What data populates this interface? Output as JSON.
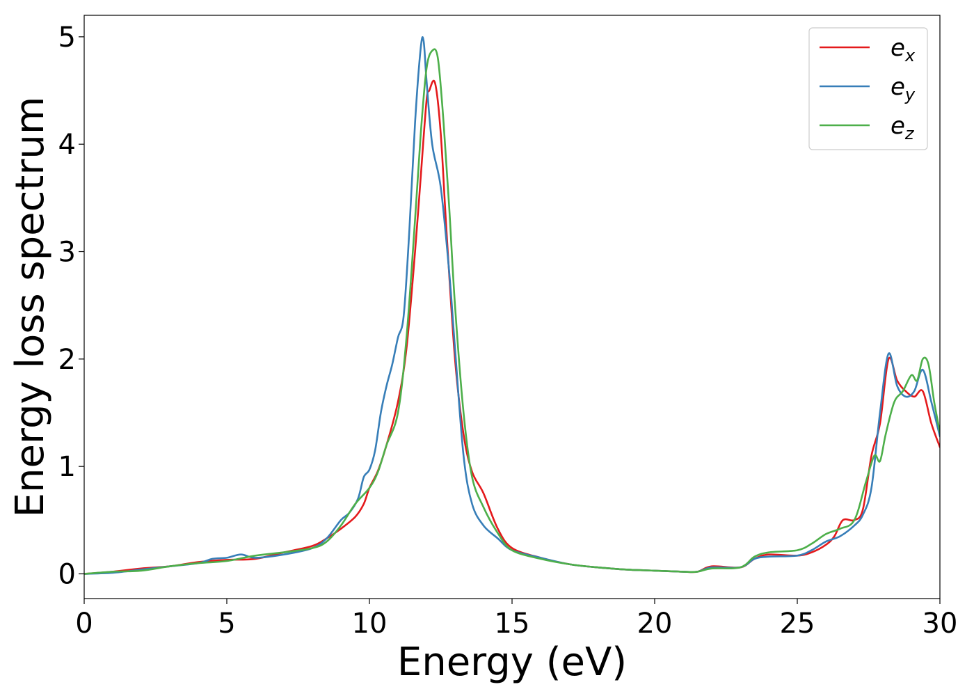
{
  "chart_data": {
    "type": "line",
    "title": "",
    "xlabel": "Energy (eV)",
    "ylabel": "Energy loss spectrum",
    "xlim": [
      0,
      30
    ],
    "ylim": [
      -0.23,
      5.2
    ],
    "x_ticks": [
      0,
      5,
      10,
      15,
      20,
      25,
      30
    ],
    "y_ticks": [
      0,
      1,
      2,
      3,
      4,
      5
    ],
    "grid": false,
    "legend_position": "top-right",
    "series": [
      {
        "name_base": "e",
        "name_sub": "x",
        "color": "#e41a1c",
        "x": [
          0,
          1,
          2,
          3,
          4,
          5,
          6,
          7,
          8,
          8.5,
          9,
          9.5,
          9.8,
          10,
          10.3,
          10.6,
          11,
          11.3,
          11.6,
          11.8,
          12,
          12.1,
          12.3,
          12.5,
          12.7,
          13,
          13.3,
          13.6,
          14,
          14.5,
          15,
          16,
          17,
          18,
          19,
          20,
          21,
          21.5,
          22,
          23,
          23.5,
          24,
          25,
          25.5,
          26,
          26.3,
          26.6,
          27,
          27.3,
          27.6,
          27.9,
          28.2,
          28.5,
          28.8,
          29.1,
          29.4,
          29.7,
          30
        ],
        "y": [
          0.0,
          0.02,
          0.05,
          0.07,
          0.11,
          0.13,
          0.14,
          0.2,
          0.26,
          0.33,
          0.42,
          0.53,
          0.65,
          0.8,
          0.96,
          1.2,
          1.6,
          2.1,
          3.0,
          3.7,
          4.4,
          4.5,
          4.57,
          4.1,
          3.2,
          2.0,
          1.3,
          0.95,
          0.75,
          0.42,
          0.24,
          0.15,
          0.09,
          0.06,
          0.04,
          0.03,
          0.02,
          0.02,
          0.07,
          0.06,
          0.14,
          0.18,
          0.17,
          0.2,
          0.27,
          0.35,
          0.5,
          0.5,
          0.6,
          1.1,
          1.4,
          2.0,
          1.8,
          1.7,
          1.65,
          1.7,
          1.4,
          1.18
        ]
      },
      {
        "name_base": "e",
        "name_sub": "y",
        "color": "#377eb8",
        "x": [
          0,
          1,
          2,
          3,
          4,
          4.5,
          5,
          5.5,
          6,
          7,
          8,
          8.5,
          9,
          9.3,
          9.6,
          9.8,
          10,
          10.2,
          10.4,
          10.6,
          10.8,
          11,
          11.2,
          11.4,
          11.6,
          11.8,
          11.9,
          12,
          12.2,
          12.5,
          12.8,
          13,
          13.3,
          13.6,
          14,
          14.5,
          15,
          16,
          17,
          18,
          19,
          20,
          21,
          21.5,
          22,
          23,
          23.5,
          24,
          25,
          25.5,
          26,
          26.5,
          27,
          27.3,
          27.6,
          27.9,
          28.2,
          28.5,
          28.8,
          29.1,
          29.4,
          29.7,
          30
        ],
        "y": [
          0.0,
          0.01,
          0.04,
          0.07,
          0.1,
          0.14,
          0.15,
          0.18,
          0.15,
          0.18,
          0.24,
          0.33,
          0.5,
          0.57,
          0.7,
          0.9,
          0.97,
          1.15,
          1.5,
          1.75,
          1.95,
          2.2,
          2.4,
          3.2,
          4.2,
          4.9,
          4.96,
          4.6,
          4.0,
          3.6,
          2.8,
          2.1,
          1.1,
          0.65,
          0.45,
          0.33,
          0.22,
          0.15,
          0.09,
          0.06,
          0.04,
          0.03,
          0.02,
          0.02,
          0.06,
          0.06,
          0.14,
          0.16,
          0.17,
          0.22,
          0.3,
          0.35,
          0.45,
          0.55,
          0.8,
          1.5,
          2.05,
          1.75,
          1.65,
          1.7,
          1.9,
          1.6,
          1.28
        ]
      },
      {
        "name_base": "e",
        "name_sub": "z",
        "color": "#4daf4a",
        "x": [
          0,
          1,
          2,
          3,
          4,
          5,
          6,
          7,
          8,
          8.5,
          9,
          9.5,
          10,
          10.3,
          10.6,
          11,
          11.3,
          11.6,
          11.8,
          12,
          12.2,
          12.4,
          12.6,
          12.8,
          13,
          13.3,
          13.6,
          14,
          14.5,
          15,
          16,
          17,
          18,
          19,
          20,
          21,
          21.5,
          22,
          23,
          23.5,
          24,
          25,
          25.5,
          26,
          26.5,
          27,
          27.4,
          27.7,
          27.9,
          28.1,
          28.4,
          28.7,
          29,
          29.2,
          29.4,
          29.6,
          29.8,
          30
        ],
        "y": [
          0.0,
          0.02,
          0.03,
          0.07,
          0.1,
          0.12,
          0.17,
          0.2,
          0.24,
          0.3,
          0.45,
          0.65,
          0.8,
          0.95,
          1.2,
          1.5,
          2.2,
          3.3,
          4.1,
          4.7,
          4.87,
          4.8,
          4.2,
          3.4,
          2.5,
          1.5,
          0.9,
          0.62,
          0.38,
          0.22,
          0.14,
          0.09,
          0.06,
          0.04,
          0.03,
          0.02,
          0.02,
          0.05,
          0.06,
          0.16,
          0.2,
          0.22,
          0.28,
          0.37,
          0.42,
          0.5,
          0.85,
          1.1,
          1.05,
          1.3,
          1.6,
          1.7,
          1.85,
          1.8,
          2.0,
          1.95,
          1.6,
          1.32
        ]
      }
    ]
  }
}
